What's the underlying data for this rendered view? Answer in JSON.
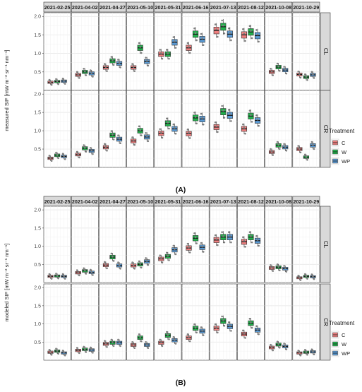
{
  "y_label_a": "measured SIF [mW m⁻² sr⁻¹ nm⁻¹]",
  "y_label_b": "modeled SIF [mW m⁻² sr⁻¹ nm⁻¹]",
  "caption_a": "(A)",
  "caption_b": "(B)",
  "legend": {
    "title": "Treatment",
    "items": [
      {
        "label": "C",
        "color": "#F08080"
      },
      {
        "label": "W",
        "color": "#22B14C"
      },
      {
        "label": "WP",
        "color": "#5B9BD5"
      }
    ]
  },
  "chart_data": [
    {
      "type": "boxplot",
      "panel": "A",
      "dates": [
        "2021-02-25",
        "2021-04-02",
        "2021-04-27",
        "2021-05-10",
        "2021-05-31",
        "2021-06-16",
        "2021-07-13",
        "2021-08-12",
        "2021-10-08",
        "2021-10-29"
      ],
      "rows": [
        "CL",
        "CR"
      ],
      "treatments": [
        "C",
        "W",
        "WP"
      ],
      "ylim": [
        0,
        2.1
      ],
      "yticks": [
        0.5,
        1.0,
        1.5,
        2.0
      ],
      "grid": true,
      "legend_position": "right",
      "medians": {
        "CL": [
          [
            0.22,
            0.24,
            0.25
          ],
          [
            0.42,
            0.5,
            0.46
          ],
          [
            0.62,
            0.8,
            0.73
          ],
          [
            0.62,
            1.15,
            0.78
          ],
          [
            0.98,
            0.98,
            1.3
          ],
          [
            1.15,
            1.52,
            1.38
          ],
          [
            1.62,
            1.72,
            1.52
          ],
          [
            1.5,
            1.58,
            1.48
          ],
          [
            0.5,
            0.63,
            0.55
          ],
          [
            0.43,
            0.36,
            0.42
          ]
        ],
        "CR": [
          [
            0.25,
            0.33,
            0.3
          ],
          [
            0.35,
            0.52,
            0.45
          ],
          [
            0.55,
            0.88,
            0.77
          ],
          [
            0.72,
            1.0,
            0.83
          ],
          [
            0.93,
            1.2,
            1.05
          ],
          [
            0.92,
            1.35,
            1.32
          ],
          [
            1.1,
            1.52,
            1.42
          ],
          [
            1.05,
            1.4,
            1.28
          ],
          [
            0.42,
            0.6,
            0.55
          ],
          [
            0.5,
            0.28,
            0.6
          ]
        ]
      }
    },
    {
      "type": "boxplot",
      "panel": "B",
      "dates": [
        "2021-02-25",
        "2021-04-02",
        "2021-04-27",
        "2021-05-10",
        "2021-05-31",
        "2021-06-16",
        "2021-07-13",
        "2021-08-12",
        "2021-10-08",
        "2021-10-29"
      ],
      "rows": [
        "CL",
        "CR"
      ],
      "treatments": [
        "C",
        "W",
        "WP"
      ],
      "ylim": [
        0,
        2.1
      ],
      "yticks": [
        0.5,
        1.0,
        1.5,
        2.0
      ],
      "grid": true,
      "legend_position": "right",
      "medians": {
        "CL": [
          [
            0.17,
            0.18,
            0.17
          ],
          [
            0.27,
            0.32,
            0.28
          ],
          [
            0.48,
            0.7,
            0.47
          ],
          [
            0.47,
            0.5,
            0.58
          ],
          [
            0.65,
            0.72,
            0.9
          ],
          [
            0.95,
            1.22,
            0.97
          ],
          [
            1.17,
            1.25,
            1.25
          ],
          [
            1.12,
            1.25,
            1.15
          ],
          [
            0.4,
            0.42,
            0.38
          ],
          [
            0.13,
            0.17,
            0.16
          ]
        ],
        "CR": [
          [
            0.22,
            0.25,
            0.2
          ],
          [
            0.27,
            0.3,
            0.28
          ],
          [
            0.45,
            0.48,
            0.48
          ],
          [
            0.42,
            0.62,
            0.42
          ],
          [
            0.48,
            0.68,
            0.55
          ],
          [
            0.62,
            0.88,
            0.8
          ],
          [
            0.88,
            1.08,
            0.93
          ],
          [
            0.72,
            1.02,
            0.83
          ],
          [
            0.35,
            0.43,
            0.38
          ],
          [
            0.2,
            0.22,
            0.23
          ]
        ]
      }
    }
  ]
}
